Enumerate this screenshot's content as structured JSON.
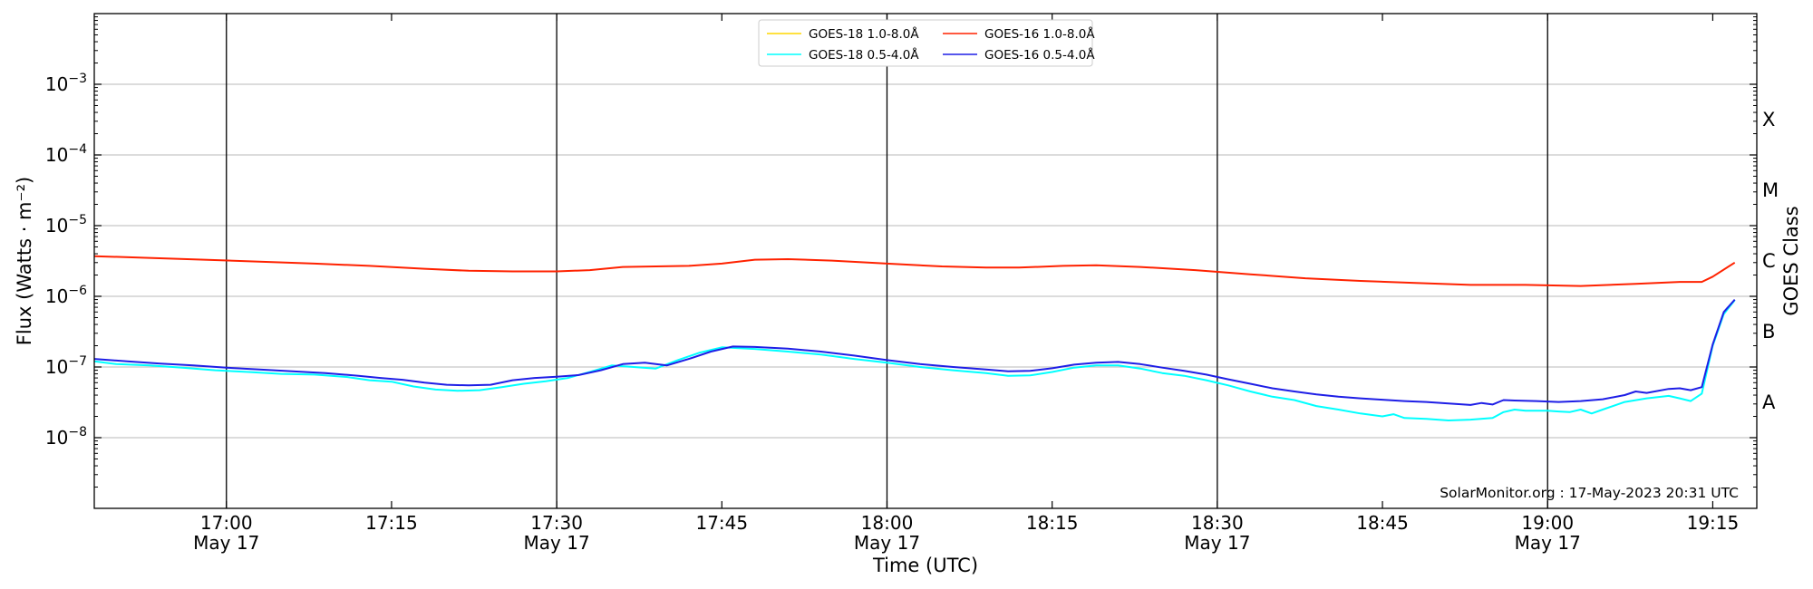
{
  "chart_data": {
    "type": "line",
    "xlabel": "Time (UTC)",
    "ylabel": "Flux (Watts · m⁻²)",
    "right_label": "GOES Class",
    "y_scale": "log",
    "ylim": [
      1e-09,
      0.01
    ],
    "x_range": [
      "16:48",
      "19:19"
    ],
    "x_ticks": [
      {
        "time": "17:00",
        "label": "17:00",
        "sublabel": "May 17",
        "major": true
      },
      {
        "time": "17:15",
        "label": "17:15",
        "sublabel": "",
        "major": false
      },
      {
        "time": "17:30",
        "label": "17:30",
        "sublabel": "May 17",
        "major": true
      },
      {
        "time": "17:45",
        "label": "17:45",
        "sublabel": "",
        "major": false
      },
      {
        "time": "18:00",
        "label": "18:00",
        "sublabel": "May 17",
        "major": true
      },
      {
        "time": "18:15",
        "label": "18:15",
        "sublabel": "",
        "major": false
      },
      {
        "time": "18:30",
        "label": "18:30",
        "sublabel": "May 17",
        "major": true
      },
      {
        "time": "18:45",
        "label": "18:45",
        "sublabel": "",
        "major": false
      },
      {
        "time": "19:00",
        "label": "19:00",
        "sublabel": "May 17",
        "major": true
      },
      {
        "time": "19:15",
        "label": "19:15",
        "sublabel": "",
        "major": false
      }
    ],
    "y_ticks": [
      {
        "value": 1e-08,
        "exp": "−8"
      },
      {
        "value": 1e-07,
        "exp": "−7"
      },
      {
        "value": 1e-06,
        "exp": "−6"
      },
      {
        "value": 1e-05,
        "exp": "−5"
      },
      {
        "value": 0.0001,
        "exp": "−4"
      },
      {
        "value": 0.001,
        "exp": "−3"
      }
    ],
    "goes_classes": [
      {
        "label": "A",
        "value": 3.16e-08
      },
      {
        "label": "B",
        "value": 3.16e-07
      },
      {
        "label": "C",
        "value": 3.16e-06
      },
      {
        "label": "M",
        "value": 3.16e-05
      },
      {
        "label": "X",
        "value": 0.000316
      }
    ],
    "legend": {
      "placement": "top-center"
    },
    "credit": "SolarMonitor.org : 17-May-2023 20:31 UTC",
    "series": [
      {
        "name": "GOES-18 1.0-8.0Å",
        "color": "#ffd700",
        "points": []
      },
      {
        "name": "GOES-18 0.5-4.0Å",
        "color": "#00ffff",
        "points": [
          [
            "16:48",
            1.2e-07
          ],
          [
            "16:50",
            1.1e-07
          ],
          [
            "16:53",
            1.05e-07
          ],
          [
            "16:56",
            9.8e-08
          ],
          [
            "16:59",
            9e-08
          ],
          [
            "17:02",
            8.5e-08
          ],
          [
            "17:05",
            8e-08
          ],
          [
            "17:08",
            7.8e-08
          ],
          [
            "17:11",
            7.2e-08
          ],
          [
            "17:13",
            6.5e-08
          ],
          [
            "17:15",
            6.2e-08
          ],
          [
            "17:17",
            5.3e-08
          ],
          [
            "17:19",
            4.8e-08
          ],
          [
            "17:21",
            4.6e-08
          ],
          [
            "17:23",
            4.7e-08
          ],
          [
            "17:25",
            5.2e-08
          ],
          [
            "17:27",
            5.8e-08
          ],
          [
            "17:29",
            6.3e-08
          ],
          [
            "17:31",
            7e-08
          ],
          [
            "17:33",
            8.5e-08
          ],
          [
            "17:35",
            1.05e-07
          ],
          [
            "17:37",
            1e-07
          ],
          [
            "17:39",
            9.5e-08
          ],
          [
            "17:41",
            1.25e-07
          ],
          [
            "17:43",
            1.6e-07
          ],
          [
            "17:45",
            1.9e-07
          ],
          [
            "17:48",
            1.8e-07
          ],
          [
            "17:51",
            1.65e-07
          ],
          [
            "17:54",
            1.5e-07
          ],
          [
            "17:57",
            1.3e-07
          ],
          [
            "18:00",
            1.15e-07
          ],
          [
            "18:03",
            1e-07
          ],
          [
            "18:06",
            9e-08
          ],
          [
            "18:09",
            8.2e-08
          ],
          [
            "18:11",
            7.5e-08
          ],
          [
            "18:13",
            7.6e-08
          ],
          [
            "18:15",
            8.5e-08
          ],
          [
            "18:17",
            9.8e-08
          ],
          [
            "18:19",
            1.05e-07
          ],
          [
            "18:21",
            1.05e-07
          ],
          [
            "18:23",
            9.5e-08
          ],
          [
            "18:25",
            8.2e-08
          ],
          [
            "18:27",
            7.5e-08
          ],
          [
            "18:29",
            6.5e-08
          ],
          [
            "18:31",
            5.5e-08
          ],
          [
            "18:33",
            4.5e-08
          ],
          [
            "18:35",
            3.8e-08
          ],
          [
            "18:37",
            3.4e-08
          ],
          [
            "18:39",
            2.8e-08
          ],
          [
            "18:41",
            2.5e-08
          ],
          [
            "18:43",
            2.2e-08
          ],
          [
            "18:45",
            2e-08
          ],
          [
            "18:46",
            2.15e-08
          ],
          [
            "18:47",
            1.9e-08
          ],
          [
            "18:49",
            1.85e-08
          ],
          [
            "18:51",
            1.75e-08
          ],
          [
            "18:53",
            1.8e-08
          ],
          [
            "18:55",
            1.9e-08
          ],
          [
            "18:56",
            2.3e-08
          ],
          [
            "18:57",
            2.5e-08
          ],
          [
            "18:58",
            2.4e-08
          ],
          [
            "19:00",
            2.4e-08
          ],
          [
            "19:01",
            2.35e-08
          ],
          [
            "19:02",
            2.3e-08
          ],
          [
            "19:03",
            2.5e-08
          ],
          [
            "19:04",
            2.2e-08
          ],
          [
            "19:05",
            2.5e-08
          ],
          [
            "19:07",
            3.2e-08
          ],
          [
            "19:09",
            3.6e-08
          ],
          [
            "19:11",
            3.9e-08
          ],
          [
            "19:12",
            3.6e-08
          ],
          [
            "19:13",
            3.3e-08
          ],
          [
            "19:14",
            4.2e-08
          ],
          [
            "19:15",
            2e-07
          ],
          [
            "19:16",
            5.6e-07
          ],
          [
            "19:17",
            8.8e-07
          ]
        ]
      },
      {
        "name": "GOES-16 1.0-8.0Å",
        "color": "#ff2200",
        "points": [
          [
            "16:48",
            3.7e-06
          ],
          [
            "16:53",
            3.5e-06
          ],
          [
            "16:58",
            3.3e-06
          ],
          [
            "17:03",
            3.1e-06
          ],
          [
            "17:08",
            2.9e-06
          ],
          [
            "17:13",
            2.7e-06
          ],
          [
            "17:18",
            2.45e-06
          ],
          [
            "17:22",
            2.3e-06
          ],
          [
            "17:26",
            2.25e-06
          ],
          [
            "17:30",
            2.25e-06
          ],
          [
            "17:33",
            2.35e-06
          ],
          [
            "17:36",
            2.6e-06
          ],
          [
            "17:39",
            2.65e-06
          ],
          [
            "17:42",
            2.7e-06
          ],
          [
            "17:45",
            2.9e-06
          ],
          [
            "17:48",
            3.3e-06
          ],
          [
            "17:51",
            3.35e-06
          ],
          [
            "17:55",
            3.2e-06
          ],
          [
            "18:00",
            2.9e-06
          ],
          [
            "18:05",
            2.65e-06
          ],
          [
            "18:09",
            2.55e-06
          ],
          [
            "18:12",
            2.55e-06
          ],
          [
            "18:16",
            2.7e-06
          ],
          [
            "18:19",
            2.75e-06
          ],
          [
            "18:23",
            2.6e-06
          ],
          [
            "18:28",
            2.35e-06
          ],
          [
            "18:33",
            2.05e-06
          ],
          [
            "18:38",
            1.8e-06
          ],
          [
            "18:43",
            1.65e-06
          ],
          [
            "18:48",
            1.55e-06
          ],
          [
            "18:53",
            1.45e-06
          ],
          [
            "18:58",
            1.45e-06
          ],
          [
            "19:03",
            1.4e-06
          ],
          [
            "19:08",
            1.5e-06
          ],
          [
            "19:12",
            1.6e-06
          ],
          [
            "19:14",
            1.6e-06
          ],
          [
            "19:15",
            1.9e-06
          ],
          [
            "19:17",
            3e-06
          ]
        ]
      },
      {
        "name": "GOES-16 0.5-4.0Å",
        "color": "#1e1ee6",
        "points": [
          [
            "16:48",
            1.3e-07
          ],
          [
            "16:51",
            1.2e-07
          ],
          [
            "16:54",
            1.12e-07
          ],
          [
            "16:57",
            1.05e-07
          ],
          [
            "17:00",
            9.8e-08
          ],
          [
            "17:03",
            9.2e-08
          ],
          [
            "17:06",
            8.7e-08
          ],
          [
            "17:09",
            8.2e-08
          ],
          [
            "17:12",
            7.5e-08
          ],
          [
            "17:14",
            7e-08
          ],
          [
            "17:16",
            6.6e-08
          ],
          [
            "17:18",
            6e-08
          ],
          [
            "17:20",
            5.6e-08
          ],
          [
            "17:22",
            5.5e-08
          ],
          [
            "17:24",
            5.6e-08
          ],
          [
            "17:26",
            6.5e-08
          ],
          [
            "17:28",
            7e-08
          ],
          [
            "17:30",
            7.3e-08
          ],
          [
            "17:32",
            7.7e-08
          ],
          [
            "17:34",
            9e-08
          ],
          [
            "17:36",
            1.1e-07
          ],
          [
            "17:38",
            1.15e-07
          ],
          [
            "17:40",
            1.05e-07
          ],
          [
            "17:42",
            1.3e-07
          ],
          [
            "17:44",
            1.65e-07
          ],
          [
            "17:46",
            1.95e-07
          ],
          [
            "17:48",
            1.92e-07
          ],
          [
            "17:51",
            1.82e-07
          ],
          [
            "17:54",
            1.65e-07
          ],
          [
            "17:57",
            1.45e-07
          ],
          [
            "18:00",
            1.25e-07
          ],
          [
            "18:03",
            1.1e-07
          ],
          [
            "18:06",
            1e-07
          ],
          [
            "18:09",
            9.2e-08
          ],
          [
            "18:11",
            8.7e-08
          ],
          [
            "18:13",
            8.8e-08
          ],
          [
            "18:15",
            9.6e-08
          ],
          [
            "18:17",
            1.08e-07
          ],
          [
            "18:19",
            1.15e-07
          ],
          [
            "18:21",
            1.18e-07
          ],
          [
            "18:23",
            1.1e-07
          ],
          [
            "18:25",
            9.8e-08
          ],
          [
            "18:27",
            8.8e-08
          ],
          [
            "18:29",
            7.8e-08
          ],
          [
            "18:31",
            6.7e-08
          ],
          [
            "18:33",
            5.8e-08
          ],
          [
            "18:35",
            5e-08
          ],
          [
            "18:37",
            4.5e-08
          ],
          [
            "18:39",
            4.1e-08
          ],
          [
            "18:41",
            3.8e-08
          ],
          [
            "18:43",
            3.6e-08
          ],
          [
            "18:45",
            3.45e-08
          ],
          [
            "18:47",
            3.3e-08
          ],
          [
            "18:49",
            3.2e-08
          ],
          [
            "18:51",
            3.05e-08
          ],
          [
            "18:53",
            2.9e-08
          ],
          [
            "18:54",
            3.1e-08
          ],
          [
            "18:55",
            2.95e-08
          ],
          [
            "18:56",
            3.4e-08
          ],
          [
            "18:57",
            3.35e-08
          ],
          [
            "18:59",
            3.3e-08
          ],
          [
            "19:01",
            3.2e-08
          ],
          [
            "19:03",
            3.3e-08
          ],
          [
            "19:05",
            3.5e-08
          ],
          [
            "19:07",
            4e-08
          ],
          [
            "19:08",
            4.5e-08
          ],
          [
            "19:09",
            4.3e-08
          ],
          [
            "19:11",
            4.9e-08
          ],
          [
            "19:12",
            5e-08
          ],
          [
            "19:13",
            4.7e-08
          ],
          [
            "19:14",
            5.2e-08
          ],
          [
            "19:15",
            2.1e-07
          ],
          [
            "19:16",
            6e-07
          ],
          [
            "19:17",
            9e-07
          ]
        ]
      }
    ]
  }
}
